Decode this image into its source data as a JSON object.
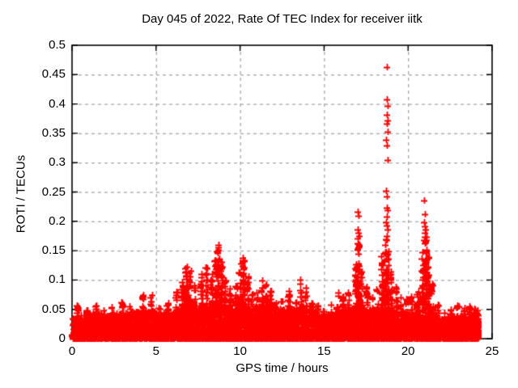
{
  "chart_data": {
    "type": "scatter",
    "title": "Day 045 of 2022, Rate Of TEC Index for receiver iitk",
    "xlabel": "GPS time / hours",
    "ylabel": "ROTI / TECUs",
    "xlim": [
      0,
      25
    ],
    "ylim": [
      0,
      0.5
    ],
    "xticks": [
      0,
      5,
      10,
      15,
      20,
      25
    ],
    "xtick_labels": [
      "0",
      "5",
      "10",
      "15",
      "20",
      "25"
    ],
    "yticks": [
      0,
      0.05,
      0.1,
      0.15,
      0.2,
      0.25,
      0.3,
      0.35,
      0.4,
      0.45,
      0.5
    ],
    "ytick_labels": [
      "0",
      "0.05",
      "0.1",
      "0.15",
      "0.2",
      "0.25",
      "0.3",
      "0.35",
      "0.4",
      "0.45",
      "0.5"
    ],
    "grid": true,
    "legend": "none",
    "marker": "+",
    "marker_color": "#ff0000",
    "grid_color": "#a8a8a8",
    "border_color": "#000000",
    "text_color": "#000000",
    "background_color": "#ffffff",
    "data_x_range": [
      0.0,
      24.2
    ],
    "baseline_band_top": [
      [
        0,
        0.035
      ],
      [
        0.5,
        0.04
      ],
      [
        1,
        0.042
      ],
      [
        1.5,
        0.045
      ],
      [
        2,
        0.042
      ],
      [
        2.5,
        0.042
      ],
      [
        3,
        0.045
      ],
      [
        3.5,
        0.045
      ],
      [
        4,
        0.048
      ],
      [
        4.5,
        0.05
      ],
      [
        5,
        0.045
      ],
      [
        5.5,
        0.045
      ],
      [
        6,
        0.05
      ],
      [
        6.5,
        0.055
      ],
      [
        7,
        0.055
      ],
      [
        7.5,
        0.052
      ],
      [
        8,
        0.055
      ],
      [
        8.5,
        0.058
      ],
      [
        9,
        0.055
      ],
      [
        9.5,
        0.05
      ],
      [
        10,
        0.055
      ],
      [
        10.5,
        0.052
      ],
      [
        11,
        0.055
      ],
      [
        11.5,
        0.058
      ],
      [
        12,
        0.052
      ],
      [
        12.5,
        0.05
      ],
      [
        13,
        0.052
      ],
      [
        13.5,
        0.055
      ],
      [
        14,
        0.052
      ],
      [
        14.5,
        0.045
      ],
      [
        15,
        0.04
      ],
      [
        15.5,
        0.045
      ],
      [
        16,
        0.048
      ],
      [
        16.5,
        0.05
      ],
      [
        17,
        0.055
      ],
      [
        17.5,
        0.05
      ],
      [
        18,
        0.05
      ],
      [
        18.5,
        0.055
      ],
      [
        19,
        0.052
      ],
      [
        19.5,
        0.048
      ],
      [
        20,
        0.045
      ],
      [
        20.5,
        0.048
      ],
      [
        21,
        0.052
      ],
      [
        21.5,
        0.045
      ],
      [
        22,
        0.035
      ],
      [
        22.5,
        0.038
      ],
      [
        23,
        0.04
      ],
      [
        23.5,
        0.038
      ],
      [
        24,
        0.038
      ],
      [
        24.2,
        0.035
      ]
    ],
    "spike_columns": [
      [
        0.35,
        0.058
      ],
      [
        0.9,
        0.052
      ],
      [
        1.45,
        0.065
      ],
      [
        1.9,
        0.052
      ],
      [
        2.4,
        0.058
      ],
      [
        3.0,
        0.068
      ],
      [
        3.45,
        0.062
      ],
      [
        4.2,
        0.075
      ],
      [
        4.7,
        0.08
      ],
      [
        5.2,
        0.058
      ],
      [
        5.7,
        0.065
      ],
      [
        6.2,
        0.082
      ],
      [
        6.55,
        0.112
      ],
      [
        6.8,
        0.128
      ],
      [
        7.0,
        0.118
      ],
      [
        7.3,
        0.096
      ],
      [
        7.7,
        0.112
      ],
      [
        8.0,
        0.122
      ],
      [
        8.3,
        0.112
      ],
      [
        8.55,
        0.15
      ],
      [
        8.7,
        0.162
      ],
      [
        8.9,
        0.134
      ],
      [
        9.1,
        0.1
      ],
      [
        9.4,
        0.088
      ],
      [
        9.75,
        0.092
      ],
      [
        10.0,
        0.132
      ],
      [
        10.2,
        0.142
      ],
      [
        10.45,
        0.108
      ],
      [
        10.7,
        0.082
      ],
      [
        11.0,
        0.078
      ],
      [
        11.3,
        0.102
      ],
      [
        11.55,
        0.096
      ],
      [
        11.8,
        0.088
      ],
      [
        12.1,
        0.078
      ],
      [
        12.5,
        0.068
      ],
      [
        12.9,
        0.082
      ],
      [
        13.3,
        0.078
      ],
      [
        13.6,
        0.1
      ],
      [
        13.9,
        0.095
      ],
      [
        14.25,
        0.062
      ],
      [
        14.6,
        0.058
      ],
      [
        15.0,
        0.052
      ],
      [
        15.45,
        0.062
      ],
      [
        15.8,
        0.082
      ],
      [
        16.1,
        0.078
      ],
      [
        16.45,
        0.082
      ],
      [
        16.9,
        0.13
      ],
      [
        17.05,
        0.165
      ],
      [
        17.2,
        0.12
      ],
      [
        17.55,
        0.092
      ],
      [
        17.85,
        0.078
      ],
      [
        18.15,
        0.085
      ],
      [
        18.45,
        0.15
      ],
      [
        18.65,
        0.17
      ],
      [
        18.8,
        0.155
      ],
      [
        19.0,
        0.12
      ],
      [
        19.3,
        0.088
      ],
      [
        19.6,
        0.072
      ],
      [
        19.9,
        0.068
      ],
      [
        20.2,
        0.072
      ],
      [
        20.55,
        0.08
      ],
      [
        20.85,
        0.15
      ],
      [
        21.05,
        0.175
      ],
      [
        21.2,
        0.14
      ],
      [
        21.45,
        0.095
      ],
      [
        21.75,
        0.062
      ],
      [
        22.15,
        0.048
      ],
      [
        22.55,
        0.052
      ],
      [
        22.95,
        0.058
      ],
      [
        23.35,
        0.055
      ],
      [
        23.65,
        0.062
      ],
      [
        23.95,
        0.052
      ],
      [
        24.15,
        0.048
      ]
    ],
    "outlier_points": [
      [
        18.75,
        0.463
      ],
      [
        18.75,
        0.408
      ],
      [
        18.8,
        0.397
      ],
      [
        18.75,
        0.381
      ],
      [
        18.78,
        0.372
      ],
      [
        18.73,
        0.367
      ],
      [
        18.78,
        0.352
      ],
      [
        18.7,
        0.339
      ],
      [
        18.75,
        0.329
      ],
      [
        18.78,
        0.305
      ],
      [
        18.7,
        0.252
      ],
      [
        18.75,
        0.242
      ],
      [
        18.72,
        0.223
      ],
      [
        18.8,
        0.219
      ],
      [
        18.76,
        0.208
      ],
      [
        18.7,
        0.199
      ],
      [
        18.74,
        0.193
      ],
      [
        18.78,
        0.186
      ],
      [
        18.72,
        0.175
      ],
      [
        18.76,
        0.168
      ],
      [
        17.0,
        0.216
      ],
      [
        17.06,
        0.209
      ],
      [
        17.0,
        0.186
      ],
      [
        17.05,
        0.18
      ],
      [
        17.1,
        0.175
      ],
      [
        17.0,
        0.171
      ],
      [
        17.05,
        0.161
      ],
      [
        16.98,
        0.153
      ],
      [
        20.95,
        0.236
      ],
      [
        21.0,
        0.212
      ],
      [
        20.95,
        0.198
      ],
      [
        21.0,
        0.192
      ],
      [
        21.05,
        0.186
      ],
      [
        20.98,
        0.18
      ],
      [
        21.02,
        0.174
      ],
      [
        20.96,
        0.168
      ],
      [
        21.0,
        0.162
      ],
      [
        21.05,
        0.146
      ]
    ]
  }
}
